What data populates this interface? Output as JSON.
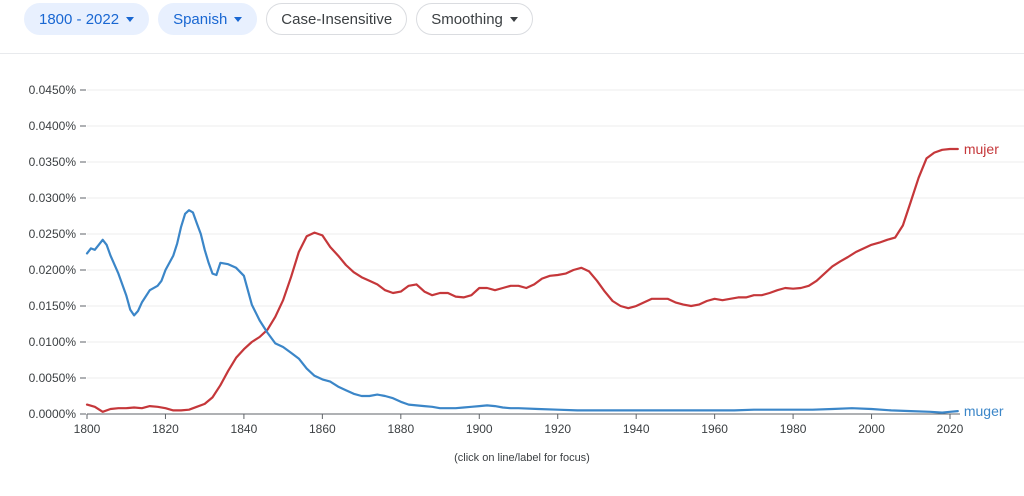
{
  "toolbar": {
    "year_range": "1800 - 2022",
    "corpus": "Spanish",
    "case": "Case-Insensitive",
    "smoothing": "Smoothing"
  },
  "colors": {
    "mujer": "#c5373a",
    "muger": "#3b86c8",
    "accent": "#1967d2"
  },
  "chart_data": {
    "type": "line",
    "xlim": [
      1800,
      2022
    ],
    "ylim": [
      0,
      0.045
    ],
    "x_ticks": [
      "1800",
      "1820",
      "1840",
      "1860",
      "1880",
      "1900",
      "1920",
      "1940",
      "1960",
      "1980",
      "2000",
      "2020"
    ],
    "y_ticks": [
      "0.0000%",
      "0.0050%",
      "0.0100%",
      "0.0150%",
      "0.0200%",
      "0.0250%",
      "0.0300%",
      "0.0350%",
      "0.0400%",
      "0.0450%"
    ],
    "grid": true,
    "note": "(click on line/label for focus)",
    "series": [
      {
        "name": "mujer",
        "points": [
          [
            1800,
            0.0013
          ],
          [
            1802,
            0.001
          ],
          [
            1804,
            0.0003
          ],
          [
            1806,
            0.0007
          ],
          [
            1808,
            0.0008
          ],
          [
            1810,
            0.0008
          ],
          [
            1812,
            0.0009
          ],
          [
            1814,
            0.0008
          ],
          [
            1816,
            0.0011
          ],
          [
            1818,
            0.001
          ],
          [
            1820,
            0.0008
          ],
          [
            1822,
            0.0005
          ],
          [
            1824,
            0.0005
          ],
          [
            1826,
            0.0006
          ],
          [
            1828,
            0.001
          ],
          [
            1830,
            0.0014
          ],
          [
            1832,
            0.0023
          ],
          [
            1834,
            0.004
          ],
          [
            1836,
            0.006
          ],
          [
            1838,
            0.0078
          ],
          [
            1840,
            0.009
          ],
          [
            1842,
            0.01
          ],
          [
            1844,
            0.0107
          ],
          [
            1846,
            0.0117
          ],
          [
            1848,
            0.0135
          ],
          [
            1850,
            0.0158
          ],
          [
            1852,
            0.019
          ],
          [
            1854,
            0.0225
          ],
          [
            1856,
            0.0247
          ],
          [
            1858,
            0.0252
          ],
          [
            1860,
            0.0248
          ],
          [
            1862,
            0.0232
          ],
          [
            1864,
            0.022
          ],
          [
            1866,
            0.0207
          ],
          [
            1868,
            0.0197
          ],
          [
            1870,
            0.019
          ],
          [
            1872,
            0.0185
          ],
          [
            1874,
            0.018
          ],
          [
            1876,
            0.0172
          ],
          [
            1878,
            0.0168
          ],
          [
            1880,
            0.017
          ],
          [
            1882,
            0.0178
          ],
          [
            1884,
            0.018
          ],
          [
            1886,
            0.017
          ],
          [
            1888,
            0.0165
          ],
          [
            1890,
            0.0168
          ],
          [
            1892,
            0.0168
          ],
          [
            1894,
            0.0163
          ],
          [
            1896,
            0.0162
          ],
          [
            1898,
            0.0165
          ],
          [
            1900,
            0.0175
          ],
          [
            1902,
            0.0175
          ],
          [
            1904,
            0.0172
          ],
          [
            1906,
            0.0175
          ],
          [
            1908,
            0.0178
          ],
          [
            1910,
            0.0178
          ],
          [
            1912,
            0.0175
          ],
          [
            1914,
            0.018
          ],
          [
            1916,
            0.0188
          ],
          [
            1918,
            0.0192
          ],
          [
            1920,
            0.0193
          ],
          [
            1922,
            0.0195
          ],
          [
            1924,
            0.02
          ],
          [
            1926,
            0.0203
          ],
          [
            1928,
            0.0198
          ],
          [
            1930,
            0.0185
          ],
          [
            1932,
            0.017
          ],
          [
            1934,
            0.0157
          ],
          [
            1936,
            0.015
          ],
          [
            1938,
            0.0147
          ],
          [
            1940,
            0.015
          ],
          [
            1942,
            0.0155
          ],
          [
            1944,
            0.016
          ],
          [
            1946,
            0.016
          ],
          [
            1948,
            0.016
          ],
          [
            1950,
            0.0155
          ],
          [
            1952,
            0.0152
          ],
          [
            1954,
            0.015
          ],
          [
            1956,
            0.0152
          ],
          [
            1958,
            0.0157
          ],
          [
            1960,
            0.016
          ],
          [
            1962,
            0.0158
          ],
          [
            1964,
            0.016
          ],
          [
            1966,
            0.0162
          ],
          [
            1968,
            0.0162
          ],
          [
            1970,
            0.0165
          ],
          [
            1972,
            0.0165
          ],
          [
            1974,
            0.0168
          ],
          [
            1976,
            0.0172
          ],
          [
            1978,
            0.0175
          ],
          [
            1980,
            0.0174
          ],
          [
            1982,
            0.0175
          ],
          [
            1984,
            0.0178
          ],
          [
            1986,
            0.0185
          ],
          [
            1988,
            0.0195
          ],
          [
            1990,
            0.0205
          ],
          [
            1992,
            0.0212
          ],
          [
            1994,
            0.0218
          ],
          [
            1996,
            0.0225
          ],
          [
            1998,
            0.023
          ],
          [
            2000,
            0.0235
          ],
          [
            2002,
            0.0238
          ],
          [
            2004,
            0.0242
          ],
          [
            2006,
            0.0245
          ],
          [
            2008,
            0.0262
          ],
          [
            2010,
            0.0295
          ],
          [
            2012,
            0.0328
          ],
          [
            2014,
            0.0355
          ],
          [
            2016,
            0.0363
          ],
          [
            2018,
            0.0367
          ],
          [
            2020,
            0.0368
          ],
          [
            2022,
            0.0368
          ]
        ]
      },
      {
        "name": "muger",
        "points": [
          [
            1800,
            0.0223
          ],
          [
            1801,
            0.023
          ],
          [
            1802,
            0.0228
          ],
          [
            1803,
            0.0235
          ],
          [
            1804,
            0.0242
          ],
          [
            1805,
            0.0235
          ],
          [
            1806,
            0.022
          ],
          [
            1808,
            0.0195
          ],
          [
            1810,
            0.0165
          ],
          [
            1811,
            0.0145
          ],
          [
            1812,
            0.0137
          ],
          [
            1813,
            0.0143
          ],
          [
            1814,
            0.0155
          ],
          [
            1816,
            0.0172
          ],
          [
            1818,
            0.0178
          ],
          [
            1819,
            0.0185
          ],
          [
            1820,
            0.02
          ],
          [
            1822,
            0.022
          ],
          [
            1823,
            0.0237
          ],
          [
            1824,
            0.026
          ],
          [
            1825,
            0.0278
          ],
          [
            1826,
            0.0283
          ],
          [
            1827,
            0.028
          ],
          [
            1828,
            0.0265
          ],
          [
            1829,
            0.025
          ],
          [
            1830,
            0.0228
          ],
          [
            1831,
            0.021
          ],
          [
            1832,
            0.0195
          ],
          [
            1833,
            0.0193
          ],
          [
            1834,
            0.021
          ],
          [
            1836,
            0.0208
          ],
          [
            1838,
            0.0203
          ],
          [
            1840,
            0.0192
          ],
          [
            1842,
            0.0152
          ],
          [
            1844,
            0.013
          ],
          [
            1846,
            0.0113
          ],
          [
            1848,
            0.0098
          ],
          [
            1850,
            0.0093
          ],
          [
            1852,
            0.0085
          ],
          [
            1854,
            0.0077
          ],
          [
            1856,
            0.0063
          ],
          [
            1858,
            0.0053
          ],
          [
            1860,
            0.0048
          ],
          [
            1862,
            0.0045
          ],
          [
            1864,
            0.0038
          ],
          [
            1866,
            0.0033
          ],
          [
            1868,
            0.0028
          ],
          [
            1870,
            0.0025
          ],
          [
            1872,
            0.0025
          ],
          [
            1874,
            0.0027
          ],
          [
            1876,
            0.0025
          ],
          [
            1878,
            0.0022
          ],
          [
            1880,
            0.0017
          ],
          [
            1882,
            0.0013
          ],
          [
            1884,
            0.0012
          ],
          [
            1886,
            0.0011
          ],
          [
            1888,
            0.001
          ],
          [
            1890,
            0.0008
          ],
          [
            1892,
            0.0008
          ],
          [
            1894,
            0.0008
          ],
          [
            1896,
            0.0009
          ],
          [
            1898,
            0.001
          ],
          [
            1900,
            0.0011
          ],
          [
            1902,
            0.0012
          ],
          [
            1904,
            0.0011
          ],
          [
            1906,
            0.0009
          ],
          [
            1908,
            0.0008
          ],
          [
            1910,
            0.0008
          ],
          [
            1915,
            0.0007
          ],
          [
            1920,
            0.0006
          ],
          [
            1925,
            0.0005
          ],
          [
            1930,
            0.0005
          ],
          [
            1935,
            0.0005
          ],
          [
            1940,
            0.0005
          ],
          [
            1945,
            0.0005
          ],
          [
            1950,
            0.0005
          ],
          [
            1955,
            0.0005
          ],
          [
            1960,
            0.0005
          ],
          [
            1965,
            0.0005
          ],
          [
            1970,
            0.0006
          ],
          [
            1975,
            0.0006
          ],
          [
            1980,
            0.0006
          ],
          [
            1985,
            0.0006
          ],
          [
            1990,
            0.0007
          ],
          [
            1995,
            0.0008
          ],
          [
            2000,
            0.0007
          ],
          [
            2005,
            0.0005
          ],
          [
            2010,
            0.0004
          ],
          [
            2015,
            0.0003
          ],
          [
            2018,
            0.0002
          ],
          [
            2020,
            0.0003
          ],
          [
            2022,
            0.0004
          ]
        ]
      }
    ]
  }
}
